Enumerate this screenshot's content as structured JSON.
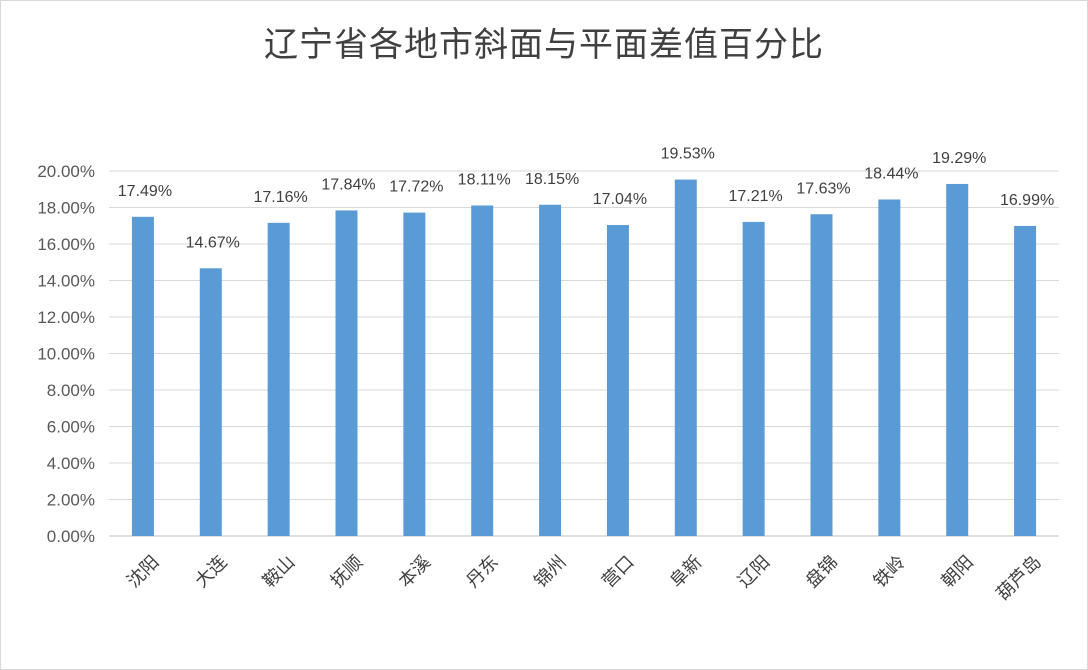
{
  "chart_data": {
    "type": "bar",
    "title": "辽宁省各地市斜面与平面差值百分比",
    "xlabel": "",
    "ylabel": "",
    "categories": [
      "沈阳",
      "大连",
      "鞍山",
      "抚顺",
      "本溪",
      "丹东",
      "锦州",
      "营口",
      "阜新",
      "辽阳",
      "盘锦",
      "铁岭",
      "朝阳",
      "葫芦岛"
    ],
    "values": [
      17.49,
      14.67,
      17.16,
      17.84,
      17.72,
      18.11,
      18.15,
      17.04,
      19.53,
      17.21,
      17.63,
      18.44,
      19.29,
      16.99
    ],
    "data_labels": [
      "17.49%",
      "14.67%",
      "17.16%",
      "17.84%",
      "17.72%",
      "18.11%",
      "18.15%",
      "17.04%",
      "19.53%",
      "17.21%",
      "17.63%",
      "18.44%",
      "19.29%",
      "16.99%"
    ],
    "y_ticks": [
      "0.00%",
      "2.00%",
      "4.00%",
      "6.00%",
      "8.00%",
      "10.00%",
      "12.00%",
      "14.00%",
      "16.00%",
      "18.00%",
      "20.00%"
    ],
    "ylim": [
      0,
      20
    ],
    "grid": true,
    "legend": "none",
    "bar_color": "#5b9bd5",
    "grid_color": "#d9d9d9"
  }
}
